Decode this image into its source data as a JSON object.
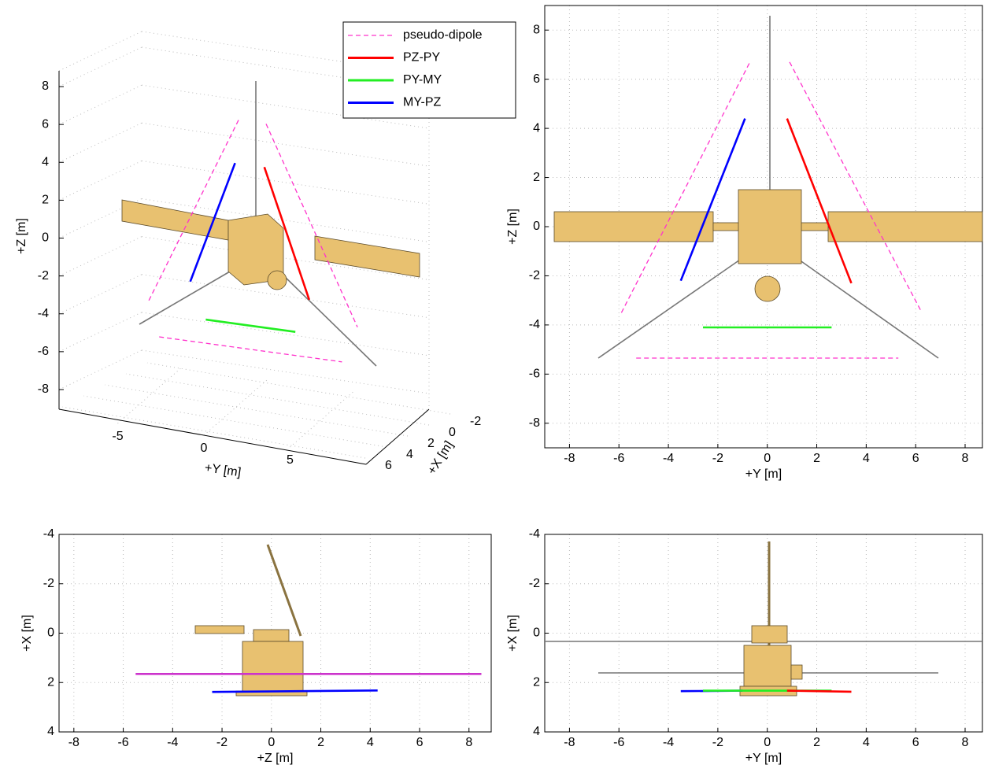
{
  "chart_data": [
    {
      "type": "line3d",
      "xlabel": "+X [m]",
      "ylabel": "+Y [m]",
      "zlabel": "+Z  [m]",
      "xticks": [
        -2,
        0,
        2,
        4,
        6
      ],
      "yticks": [
        -5,
        0,
        5
      ],
      "zticks": [
        -8,
        -6,
        -4,
        -2,
        0,
        2,
        4,
        6,
        8
      ],
      "legend": "top-right",
      "series": [
        {
          "name": "pseudo-dipole",
          "color": "#ff33cc",
          "style": "dashed",
          "x": [
            2.35,
            2.35,
            null,
            2.35,
            2.35,
            null,
            2.35,
            2.35
          ],
          "y": [
            -5.9,
            -0.7,
            null,
            0.9,
            6.2,
            null,
            -5.3,
            5.3
          ],
          "z": [
            -3.5,
            6.7,
            null,
            6.7,
            -3.4,
            null,
            -5.35,
            -5.35
          ]
        },
        {
          "name": "PZ-PY",
          "color": "#ff0000",
          "style": "solid",
          "x": [
            2.35,
            2.35
          ],
          "y": [
            0.8,
            3.4
          ],
          "z": [
            4.4,
            -2.3
          ]
        },
        {
          "name": "PY-MY",
          "color": "#22ee22",
          "style": "solid",
          "x": [
            2.35,
            2.35
          ],
          "y": [
            -2.6,
            2.6
          ],
          "z": [
            -4.1,
            -4.1
          ]
        },
        {
          "name": "MY-PZ",
          "color": "#0000ff",
          "style": "solid",
          "x": [
            2.35,
            2.35
          ],
          "y": [
            -0.9,
            -3.5
          ],
          "z": [
            4.4,
            -2.2
          ]
        }
      ]
    },
    {
      "type": "line",
      "xlabel": "+Y  [m]",
      "ylabel": "+Z  [m]",
      "xlim": [
        -9,
        8.7
      ],
      "ylim": [
        -9,
        9
      ],
      "xticks": [
        -8,
        -6,
        -4,
        -2,
        0,
        2,
        4,
        6,
        8
      ],
      "yticks": [
        -8,
        -6,
        -4,
        -2,
        0,
        2,
        4,
        6,
        8
      ],
      "grid": true,
      "series": [
        {
          "color": "#ff33cc",
          "style": "dashed",
          "x": [
            -5.9,
            -0.7,
            null,
            0.9,
            6.2,
            null,
            -5.3,
            5.3
          ],
          "y": [
            -3.5,
            6.7,
            null,
            6.7,
            -3.4,
            null,
            -5.35,
            -5.35
          ]
        },
        {
          "color": "#ff0000",
          "style": "solid",
          "x": [
            0.8,
            3.4
          ],
          "y": [
            4.4,
            -2.3
          ]
        },
        {
          "color": "#22ee22",
          "style": "solid",
          "x": [
            -2.6,
            2.6
          ],
          "y": [
            -4.1,
            -4.1
          ]
        },
        {
          "color": "#0000ff",
          "style": "solid",
          "x": [
            -0.9,
            -3.5
          ],
          "y": [
            4.4,
            -2.2
          ]
        }
      ]
    },
    {
      "type": "line",
      "xlabel": "+Z  [m]",
      "ylabel": "+X [m]",
      "xlim": [
        -8.6,
        8.9
      ],
      "ylim": [
        -4,
        4
      ],
      "yreverse": true,
      "xticks": [
        -8,
        -6,
        -4,
        -2,
        0,
        2,
        4,
        6,
        8
      ],
      "yticks": [
        -4,
        -2,
        0,
        2,
        4
      ],
      "grid": true,
      "series": [
        {
          "color": "#cc33cc",
          "style": "solid",
          "x": [
            -5.5,
            8.5
          ],
          "y": [
            1.65,
            1.65
          ]
        },
        {
          "color": "#0000ff",
          "style": "solid",
          "x": [
            -2.4,
            4.3
          ],
          "y": [
            2.38,
            2.32
          ]
        }
      ]
    },
    {
      "type": "line",
      "xlabel": "+Y  [m]",
      "ylabel": "+X [m]",
      "xlim": [
        -9,
        8.7
      ],
      "ylim": [
        -4,
        4
      ],
      "yreverse": true,
      "xticks": [
        -8,
        -6,
        -4,
        -2,
        0,
        2,
        4,
        6,
        8
      ],
      "yticks": [
        -4,
        -2,
        0,
        2,
        4
      ],
      "grid": true,
      "series": [
        {
          "color": "#0000ff",
          "style": "solid",
          "x": [
            -3.5,
            -1
          ],
          "y": [
            2.35,
            2.33
          ]
        },
        {
          "color": "#22ee22",
          "style": "solid",
          "x": [
            -2.6,
            2.6
          ],
          "y": [
            2.33,
            2.33
          ]
        },
        {
          "color": "#ff0000",
          "style": "solid",
          "x": [
            0.8,
            3.4
          ],
          "y": [
            2.33,
            2.37
          ]
        }
      ]
    }
  ]
}
